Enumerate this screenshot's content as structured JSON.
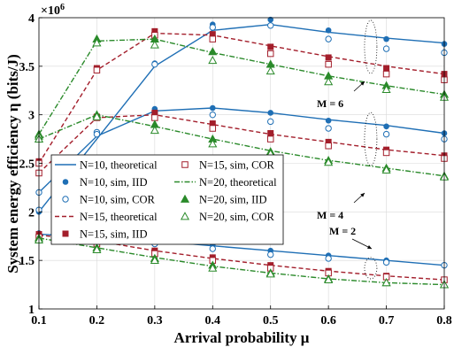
{
  "chart_data": {
    "type": "line",
    "xlabel": "Arrival probability μ",
    "ylabel": "System energy efficiency η (bits/J)",
    "y_multiplier": "×10",
    "y_multiplier_exp": "6",
    "xlim": [
      0.1,
      0.8
    ],
    "ylim": [
      1,
      4
    ],
    "xticks": [
      0.1,
      0.2,
      0.3,
      0.4,
      0.5,
      0.6,
      0.7,
      0.8
    ],
    "xtick_labels": [
      "0.1",
      "0.2",
      "0.3",
      "0.4",
      "0.5",
      "0.6",
      "0.7",
      "0.8"
    ],
    "yticks": [
      1,
      1.5,
      2,
      2.5,
      3,
      3.5,
      4
    ],
    "ytick_labels": [
      "1",
      "1.5",
      "2",
      "2.5",
      "3",
      "3.5",
      "4"
    ],
    "grid": true,
    "legend_position": "center-left",
    "colors": {
      "N10": "#1f6fb5",
      "N15": "#a31e2b",
      "N20": "#2a8a2a"
    },
    "annotations": [
      "M = 2",
      "M = 4",
      "M = 6"
    ],
    "legend": [
      {
        "label": "N=10, theoretical",
        "color": "#1f6fb5",
        "line": "solid",
        "marker": "none"
      },
      {
        "label": "N=15, sim, COR",
        "color": "#a31e2b",
        "line": "none",
        "marker": "square-open"
      },
      {
        "label": "N=10, sim, IID",
        "color": "#1f6fb5",
        "line": "none",
        "marker": "circle-filled"
      },
      {
        "label": "N=20, theoretical",
        "color": "#2a8a2a",
        "line": "dashdot",
        "marker": "none"
      },
      {
        "label": "N=10, sim, COR",
        "color": "#1f6fb5",
        "line": "none",
        "marker": "circle-open"
      },
      {
        "label": "N=20, sim, IID",
        "color": "#2a8a2a",
        "line": "none",
        "marker": "triangle-filled"
      },
      {
        "label": "N=15, theoretical",
        "color": "#a31e2b",
        "line": "dashed",
        "marker": "none"
      },
      {
        "label": "N=20, sim, COR",
        "color": "#2a8a2a",
        "line": "none",
        "marker": "triangle-open"
      },
      {
        "label": "N=15, sim, IID",
        "color": "#a31e2b",
        "line": "none",
        "marker": "square-filled"
      }
    ],
    "x": [
      0.1,
      0.2,
      0.3,
      0.4,
      0.5,
      0.6,
      0.7,
      0.8
    ],
    "groups": [
      {
        "M": "M = 6",
        "series": [
          {
            "N": 10,
            "theoretical": [
              2.0,
              2.75,
              3.5,
              3.87,
              3.93,
              3.85,
              3.79,
              3.74
            ],
            "sim_iid": [
              2.0,
              2.8,
              3.53,
              3.93,
              3.98,
              3.87,
              3.78,
              3.73
            ],
            "sim_cor": [
              2.02,
              2.82,
              3.52,
              3.9,
              3.92,
              3.78,
              3.68,
              3.64
            ]
          },
          {
            "N": 15,
            "theoretical": [
              2.5,
              3.46,
              3.84,
              3.82,
              3.71,
              3.6,
              3.5,
              3.42
            ],
            "sim_iid": [
              2.52,
              3.48,
              3.86,
              3.83,
              3.7,
              3.59,
              3.48,
              3.42
            ],
            "sim_cor": [
              2.5,
              3.46,
              3.82,
              3.78,
              3.63,
              3.52,
              3.42,
              3.36
            ]
          },
          {
            "N": 20,
            "theoretical": [
              2.8,
              3.76,
              3.78,
              3.64,
              3.52,
              3.4,
              3.3,
              3.21
            ],
            "sim_iid": [
              2.8,
              3.78,
              3.78,
              3.65,
              3.52,
              3.4,
              3.3,
              3.21
            ],
            "sim_cor": [
              2.78,
              3.74,
              3.72,
              3.56,
              3.45,
              3.34,
              3.26,
              3.18
            ]
          }
        ]
      },
      {
        "M": "M = 4",
        "series": [
          {
            "N": 10,
            "theoretical": [
              2.2,
              2.78,
              3.04,
              3.07,
              3.02,
              2.95,
              2.89,
              2.81
            ],
            "sim_iid": [
              2.2,
              2.8,
              3.06,
              3.07,
              3.02,
              2.94,
              2.88,
              2.81
            ],
            "sim_cor": [
              2.2,
              2.8,
              3.02,
              3.0,
              2.93,
              2.86,
              2.8,
              2.75
            ]
          },
          {
            "N": 15,
            "theoretical": [
              2.4,
              2.97,
              3.0,
              2.9,
              2.8,
              2.72,
              2.64,
              2.58
            ],
            "sim_iid": [
              2.4,
              2.98,
              3.02,
              2.91,
              2.81,
              2.72,
              2.64,
              2.58
            ],
            "sim_cor": [
              2.4,
              2.97,
              2.97,
              2.86,
              2.75,
              2.68,
              2.61,
              2.55
            ]
          },
          {
            "N": 20,
            "theoretical": [
              2.75,
              3.0,
              2.88,
              2.75,
              2.63,
              2.53,
              2.45,
              2.37
            ],
            "sim_iid": [
              2.75,
              3.0,
              2.9,
              2.75,
              2.62,
              2.53,
              2.45,
              2.37
            ],
            "sim_cor": [
              2.75,
              2.98,
              2.84,
              2.7,
              2.6,
              2.51,
              2.43,
              2.36
            ]
          }
        ]
      },
      {
        "M": "M = 2",
        "series": [
          {
            "N": 10,
            "theoretical": [
              1.77,
              1.74,
              1.7,
              1.65,
              1.6,
              1.55,
              1.5,
              1.45
            ],
            "sim_iid": [
              1.78,
              1.74,
              1.71,
              1.66,
              1.6,
              1.55,
              1.5,
              1.45
            ],
            "sim_cor": [
              1.76,
              1.72,
              1.67,
              1.62,
              1.56,
              1.52,
              1.48,
              1.45
            ]
          },
          {
            "N": 15,
            "theoretical": [
              1.76,
              1.7,
              1.6,
              1.52,
              1.45,
              1.39,
              1.34,
              1.3
            ],
            "sim_iid": [
              1.77,
              1.7,
              1.6,
              1.53,
              1.45,
              1.39,
              1.34,
              1.3
            ],
            "sim_cor": [
              1.74,
              1.67,
              1.57,
              1.5,
              1.42,
              1.37,
              1.33,
              1.3
            ]
          },
          {
            "N": 20,
            "theoretical": [
              1.73,
              1.63,
              1.53,
              1.44,
              1.37,
              1.31,
              1.27,
              1.25
            ],
            "sim_iid": [
              1.73,
              1.63,
              1.52,
              1.45,
              1.37,
              1.31,
              1.27,
              1.25
            ],
            "sim_cor": [
              1.71,
              1.61,
              1.5,
              1.42,
              1.36,
              1.3,
              1.27,
              1.25
            ]
          }
        ]
      }
    ]
  }
}
